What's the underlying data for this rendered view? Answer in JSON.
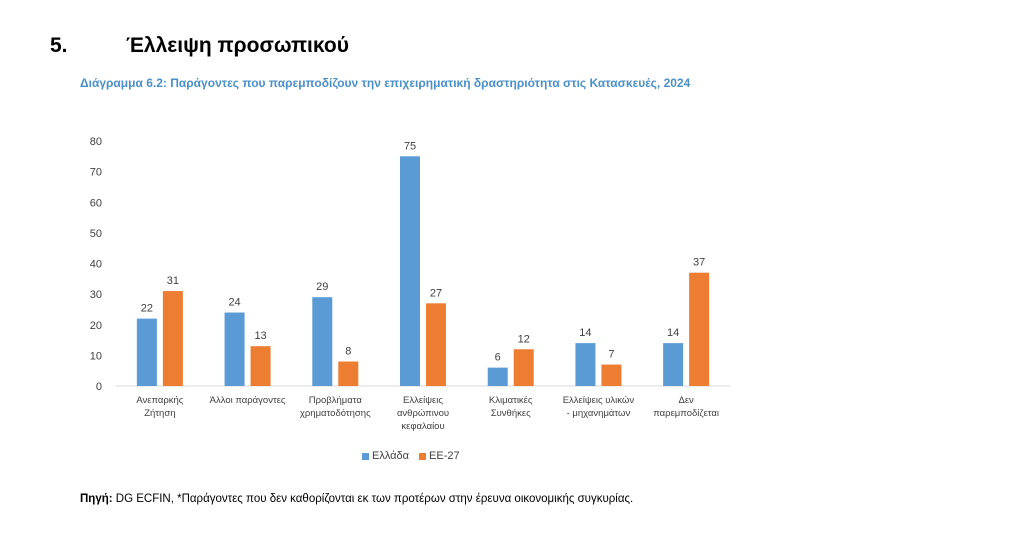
{
  "heading": {
    "number": "5.",
    "title": "Έλλειψη προσωπικού"
  },
  "colors": {
    "series1": "#5b9bd5",
    "series2": "#ed7d31",
    "title": "#4a90c9",
    "axis_text": "#404040",
    "axis_line": "#d9d9d9"
  },
  "chart_data": {
    "type": "bar",
    "title": "Διάγραμμα 6.2: Παράγοντες που παρεμποδίζουν την επιχειρηματική δραστηριότητα στις Κατασκευές, 2024",
    "categories": [
      [
        "Ανεπαρκής",
        "Ζήτηση"
      ],
      [
        "Άλλοι παράγοντες"
      ],
      [
        "Προβλήματα",
        "χρηματοδότησης"
      ],
      [
        "Ελλείψεις",
        "ανθρώπινου",
        "κεφαλαίου"
      ],
      [
        "Κλιματικές",
        "Συνθήκες"
      ],
      [
        "Ελλείψεις υλικών",
        "- μηχανημάτων"
      ],
      [
        "Δεν",
        "παρεμποδίζεται"
      ]
    ],
    "series": [
      {
        "name": "Ελλάδα",
        "values": [
          22,
          24,
          29,
          75,
          6,
          14,
          14
        ]
      },
      {
        "name": "ΕΕ-27",
        "values": [
          31,
          13,
          8,
          27,
          12,
          7,
          37
        ]
      }
    ],
    "yticks": [
      0,
      10,
      20,
      30,
      40,
      50,
      60,
      70,
      80
    ],
    "ylim": [
      0,
      80
    ],
    "xlabel": "",
    "ylabel": "",
    "legend": "bottom-center",
    "grid": false
  },
  "source": {
    "label": "Πηγή:",
    "text": " DG ECFIN, *Παράγοντες που δεν καθορίζονται εκ των προτέρων στην έρευνα οικονομικής συγκυρίας."
  }
}
